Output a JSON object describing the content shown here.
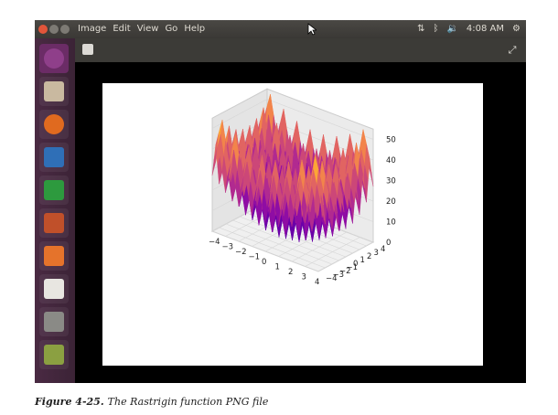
{
  "menubar": {
    "menus": [
      "Image",
      "Edit",
      "View",
      "Go",
      "Help"
    ],
    "clock": "4:08 AM"
  },
  "launcher": {
    "apps": [
      {
        "name": "ubuntu-dash-icon",
        "color": "#8f3f8a"
      },
      {
        "name": "files-icon",
        "color": "#c9b9a0"
      },
      {
        "name": "firefox-icon",
        "color": "#e06a1f"
      },
      {
        "name": "writer-icon",
        "color": "#2f6fb7"
      },
      {
        "name": "calc-icon",
        "color": "#2d9a3e"
      },
      {
        "name": "impress-icon",
        "color": "#c0502a"
      },
      {
        "name": "software-center-icon",
        "color": "#e5732b"
      },
      {
        "name": "amazon-icon",
        "color": "#e8e6e1"
      },
      {
        "name": "settings-icon",
        "color": "#8a8a86"
      },
      {
        "name": "image-viewer-icon",
        "color": "#8ba041"
      }
    ]
  },
  "chart_data": {
    "type": "surface3d",
    "function": "Rastrigin",
    "x_ticks": [
      "−4",
      "−3",
      "−2",
      "−1",
      "0",
      "1",
      "2",
      "3",
      "4"
    ],
    "y_ticks": [
      "−4",
      "−3",
      "−2",
      "−1",
      "0",
      "1",
      "2",
      "3",
      "4"
    ],
    "z_ticks": [
      "0",
      "10",
      "20",
      "30",
      "40",
      "50"
    ],
    "xlim": [
      -4,
      4
    ],
    "ylim": [
      -4,
      4
    ],
    "zlim": [
      0,
      55
    ],
    "colormap": "plasma",
    "grid": true
  },
  "caption": {
    "label": "Figure 4-25.",
    "text": "The Rastrigin function PNG file"
  }
}
